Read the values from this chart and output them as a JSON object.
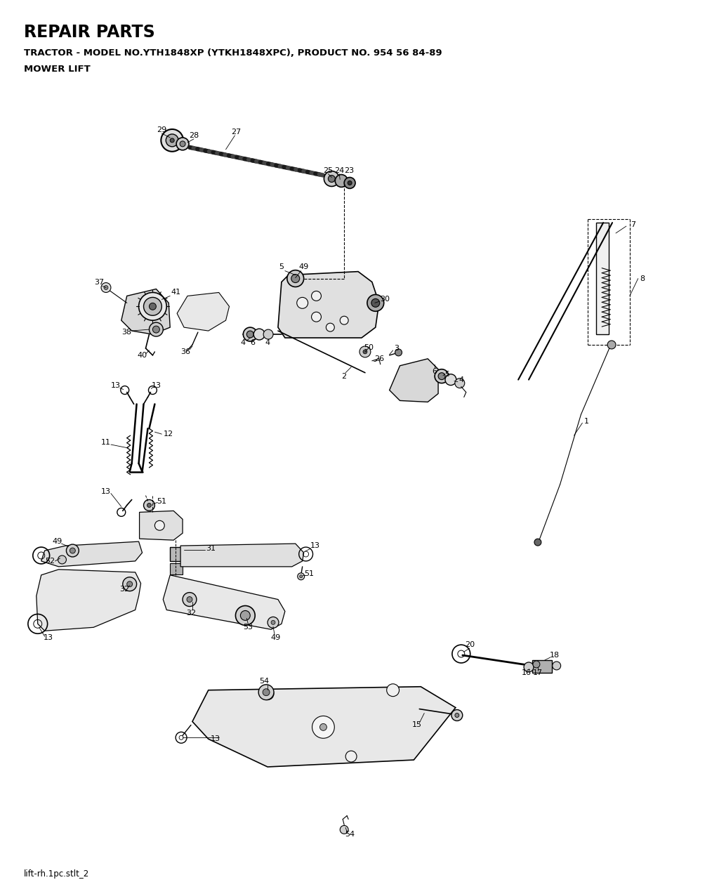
{
  "title_line1": "REPAIR PARTS",
  "title_line2": "TRACTOR - MODEL NO.YTH1848XP (YTKH1848XPC), PRODUCT NO. 954 56 84-89",
  "title_line3": "MOWER LIFT",
  "footer_text": "lift-rh.1pc.stlt_2",
  "bg_color": "#ffffff",
  "line_color": "#000000",
  "fig_width": 10.24,
  "fig_height": 12.73,
  "dpi": 100
}
